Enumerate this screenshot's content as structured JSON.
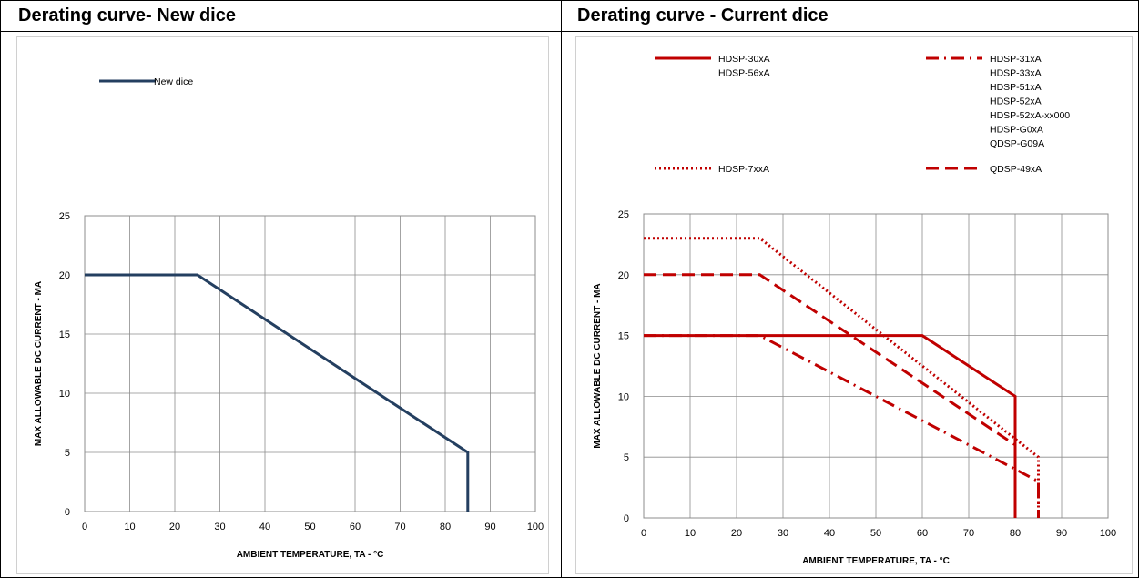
{
  "panels": {
    "left_title": "Derating curve- New dice",
    "right_title": "Derating curve - Current dice"
  },
  "chart_data": [
    {
      "type": "line",
      "title": "Derating curve- New dice",
      "xlabel": "AMBIENT TEMPERATURE, TA - °C",
      "ylabel": "MAX ALLOWABLE DC CURRENT - MA",
      "xlim": [
        0,
        100
      ],
      "ylim": [
        0,
        25
      ],
      "x_ticks": [
        "0",
        "10",
        "20",
        "30",
        "40",
        "50",
        "60",
        "70",
        "80",
        "90",
        "100"
      ],
      "y_ticks": [
        "0",
        "5",
        "10",
        "15",
        "20",
        "25"
      ],
      "grid": true,
      "legend": {
        "position": "top-left"
      },
      "series": [
        {
          "name": "New dice",
          "color": "#243F60",
          "style": "solid",
          "points": [
            [
              0,
              20
            ],
            [
              25,
              20
            ],
            [
              85,
              5
            ],
            [
              85,
              0
            ]
          ]
        }
      ]
    },
    {
      "type": "line",
      "title": "Derating curve - Current dice",
      "xlabel": "AMBIENT TEMPERATURE, TA - °C",
      "ylabel": "MAX ALLOWABLE DC CURRENT - MA",
      "xlim": [
        0,
        100
      ],
      "ylim": [
        0,
        25
      ],
      "x_ticks": [
        "0",
        "10",
        "20",
        "30",
        "40",
        "50",
        "60",
        "70",
        "80",
        "90",
        "100"
      ],
      "y_ticks": [
        "0",
        "5",
        "10",
        "15",
        "20",
        "25"
      ],
      "grid": true,
      "legend": {
        "position": "top"
      },
      "series": [
        {
          "name": "HDSP-30xA",
          "labels": [
            "HDSP-30xA",
            "HDSP-56xA"
          ],
          "color": "#C00000",
          "style": "solid",
          "points": [
            [
              0,
              15
            ],
            [
              60,
              15
            ],
            [
              80,
              10
            ],
            [
              80,
              0
            ]
          ]
        },
        {
          "name": "HDSP-31xA",
          "labels": [
            "HDSP-31xA",
            "HDSP-33xA",
            "HDSP-51xA",
            "HDSP-52xA",
            "HDSP-52xA-xx000",
            "HDSP-G0xA",
            "QDSP-G09A"
          ],
          "color": "#C00000",
          "style": "dash-dot",
          "points": [
            [
              0,
              15
            ],
            [
              25,
              15
            ],
            [
              85,
              3
            ],
            [
              85,
              0
            ]
          ]
        },
        {
          "name": "HDSP-7xxA",
          "labels": [
            "HDSP-7xxA"
          ],
          "color": "#C00000",
          "style": "dotted",
          "points": [
            [
              0,
              23
            ],
            [
              25,
              23
            ],
            [
              85,
              5
            ],
            [
              85,
              0
            ]
          ]
        },
        {
          "name": "QDSP-49xA",
          "labels": [
            "QDSP-49xA"
          ],
          "color": "#C00000",
          "style": "dashed",
          "points": [
            [
              0,
              20
            ],
            [
              25,
              20
            ],
            [
              80,
              6
            ],
            [
              80,
              0
            ]
          ]
        }
      ]
    }
  ]
}
